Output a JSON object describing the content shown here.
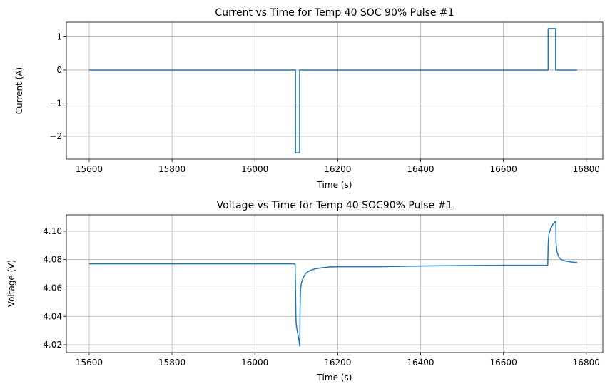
{
  "colors": {
    "series": "#1f77b4",
    "grid": "#b0b0b0"
  },
  "chart_data": [
    {
      "type": "line",
      "title": "Current vs Time for Temp 40 SOC 90% Pulse #1",
      "xlabel": "Time (s)",
      "ylabel": "Current (A)",
      "xlim": [
        15545,
        16840
      ],
      "ylim": [
        -2.69,
        1.44
      ],
      "grid": true,
      "xticks": [
        15600,
        15800,
        16000,
        16200,
        16400,
        16600,
        16800
      ],
      "xtick_labels": [
        "15600",
        "15800",
        "16000",
        "16200",
        "16400",
        "16600",
        "16800"
      ],
      "yticks": [
        1,
        0,
        -1,
        -2
      ],
      "ytick_labels": [
        "1",
        "0",
        "−1",
        "−2"
      ],
      "series": [
        {
          "x": [
            15600,
            16098,
            16098,
            16108,
            16108,
            16708,
            16708,
            16726,
            16726,
            16778
          ],
          "y": [
            0,
            0,
            -2.5,
            -2.5,
            0,
            0,
            1.25,
            1.25,
            0,
            0
          ]
        }
      ]
    },
    {
      "type": "line",
      "title": "Voltage vs Time for Temp 40 SOC90% Pulse #1",
      "xlabel": "Time (s)",
      "ylabel": "Voltage (V)",
      "xlim": [
        15545,
        16840
      ],
      "ylim": [
        4.0145,
        4.1115
      ],
      "grid": true,
      "xticks": [
        15600,
        15800,
        16000,
        16200,
        16400,
        16600,
        16800
      ],
      "xtick_labels": [
        "15600",
        "15800",
        "16000",
        "16200",
        "16400",
        "16600",
        "16800"
      ],
      "yticks": [
        4.1,
        4.08,
        4.06,
        4.04,
        4.02
      ],
      "ytick_labels": [
        "4.10",
        "4.08",
        "4.06",
        "4.04",
        "4.02"
      ],
      "series": [
        {
          "x": [
            15600,
            16097,
            16098,
            16099,
            16100,
            16102,
            16104,
            16106,
            16108,
            16108.5,
            16109,
            16110,
            16112,
            16115,
            16118,
            16122,
            16128,
            16135,
            16145,
            16160,
            16180,
            16200,
            16300,
            16400,
            16500,
            16600,
            16707,
            16708,
            16709,
            16710,
            16713,
            16716,
            16720,
            16724,
            16726,
            16726.5,
            16727,
            16729,
            16732,
            16736,
            16742,
            16750,
            16760,
            16770,
            16778
          ],
          "y": [
            4.077,
            4.077,
            4.062,
            4.04,
            4.034,
            4.03,
            4.027,
            4.024,
            4.02,
            4.019,
            4.045,
            4.058,
            4.063,
            4.066,
            4.068,
            4.07,
            4.0715,
            4.0725,
            4.0735,
            4.0742,
            4.0748,
            4.075,
            4.075,
            4.0755,
            4.0758,
            4.076,
            4.076,
            4.09,
            4.095,
            4.098,
            4.101,
            4.103,
            4.105,
            4.1065,
            4.107,
            4.107,
            4.092,
            4.086,
            4.083,
            4.081,
            4.0795,
            4.079,
            4.0785,
            4.078,
            4.078
          ]
        }
      ]
    }
  ]
}
